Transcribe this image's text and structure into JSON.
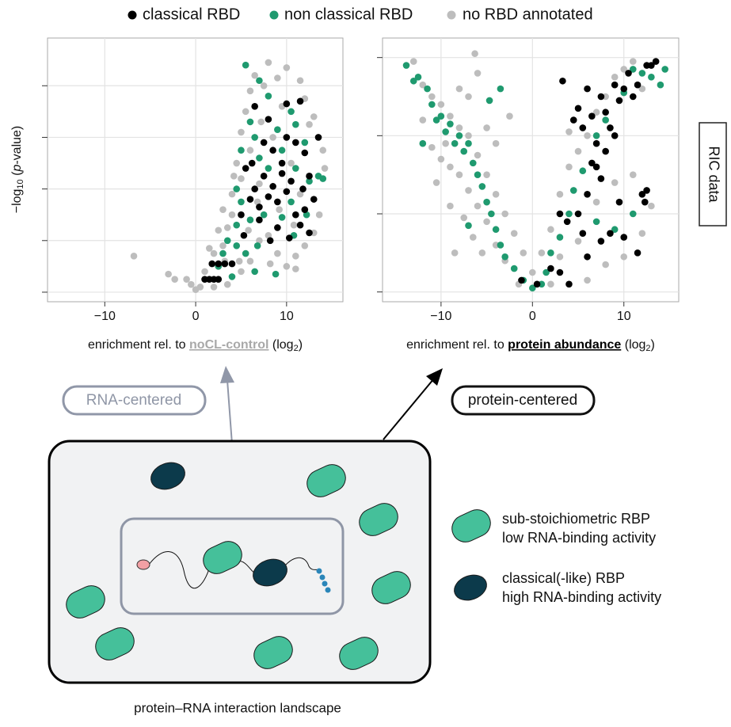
{
  "chart_data": [
    {
      "type": "scatter",
      "ylabel": {
        "pre": "−log",
        "sub": "10",
        "mid": " (",
        "italic": "p",
        "post": "-value)"
      },
      "xlabel": {
        "pre": "enrichment rel. to ",
        "highlight": "noCL-control",
        "mid": " (log",
        "sub": "2",
        "post": ")"
      },
      "highlight_color": "#a9a9a9",
      "xlim": [
        -16.3,
        16.2
      ],
      "ylim": [
        -0.37,
        9.85
      ],
      "xticks": [
        {
          "value": -10,
          "label": "−10"
        },
        0,
        10
      ],
      "yticks": [
        0,
        2,
        4,
        6,
        8
      ],
      "grid": true,
      "series": [
        {
          "name": "classical RBD",
          "color": "#000000",
          "x": [
            1.0,
            1.5,
            2.0,
            2.5,
            1.8,
            2.5,
            3.2,
            4.0,
            5.3,
            5.0,
            6.0,
            6.5,
            7.0,
            7.5,
            8.0,
            8.5,
            9.0,
            9.5,
            10.0,
            10.5,
            11.0,
            11.5,
            12.0,
            12.5,
            13.0,
            10.3,
            9.0,
            7.0,
            6.2,
            8.5,
            10.0,
            11.0,
            12.0,
            13.5,
            10.0,
            11.5,
            6.5,
            8.0,
            9.5,
            7.5,
            5.5,
            12.5,
            8.2,
            11.8
          ],
          "y": [
            0.5,
            0.5,
            0.5,
            0.5,
            1.1,
            1.1,
            1.1,
            1.1,
            2.2,
            3.0,
            3.6,
            4.0,
            3.3,
            4.5,
            3.7,
            4.1,
            3.5,
            4.6,
            3.9,
            4.3,
            3.0,
            2.6,
            3.2,
            2.3,
            3.6,
            2.1,
            2.5,
            2.8,
            5.0,
            5.5,
            6.0,
            5.8,
            5.4,
            6.0,
            7.3,
            7.4,
            7.2,
            6.7,
            5.0,
            5.8,
            4.8,
            4.5,
            2.0,
            4.0
          ]
        },
        {
          "name": "non classical RBD",
          "color": "#1f9a6f",
          "x": [
            5.5,
            7,
            8,
            6,
            10.5,
            5,
            6.5,
            9,
            11,
            12,
            13.5,
            14,
            4.5,
            5,
            6,
            7.5,
            9.5,
            10.5,
            12.5,
            3,
            4.5,
            5.5,
            2.5,
            4,
            6.5,
            8.8,
            10.8,
            12.2,
            8,
            7,
            9.5,
            11,
            4.5,
            3.5,
            6.8
          ],
          "y": [
            8.8,
            8.2,
            7.6,
            6.6,
            7.0,
            5.5,
            6.0,
            6.3,
            6.5,
            5.8,
            4.5,
            4.4,
            4.0,
            3.5,
            2.8,
            3.0,
            2.9,
            3.5,
            4.3,
            1.5,
            1.8,
            1.5,
            1.0,
            0.6,
            0.8,
            0.7,
            2.2,
            3.0,
            4.8,
            5.2,
            5.5,
            4.8,
            2.6,
            2.0,
            1.8
          ]
        },
        {
          "name": "no RBD annotated",
          "color": "#bdbdbd",
          "x": [
            -6.8,
            -3,
            -2.3,
            -1,
            0,
            -0.5,
            0.5,
            1,
            2,
            3,
            3.5,
            4,
            4,
            5,
            4.5,
            5,
            5.5,
            6,
            6.5,
            7.5,
            8,
            9,
            10,
            11.5,
            12,
            13,
            14,
            14.2,
            13.6,
            12,
            11,
            10,
            9,
            8,
            7,
            6,
            5,
            3.5,
            2,
            6,
            7,
            8.5,
            9.5,
            10.5,
            12.5,
            3,
            2.5,
            1.5,
            4.2,
            7.2,
            9.2,
            10.8,
            11.5,
            6.8,
            5.8,
            4.8,
            3.2,
            8.2,
            11,
            13
          ],
          "y": [
            1.4,
            0.7,
            0.5,
            0.5,
            0.1,
            0.3,
            0.2,
            0.8,
            1.5,
            1.8,
            2.5,
            3.0,
            3.8,
            4.4,
            5.0,
            6.2,
            7.0,
            7.8,
            8.4,
            8.0,
            8.9,
            8.3,
            8.7,
            8.2,
            7.5,
            6.8,
            5.5,
            4.8,
            3.0,
            1.8,
            1.4,
            1.0,
            1.5,
            2.2,
            2.0,
            1.2,
            0.8,
            0.3,
            0.2,
            5.5,
            4.2,
            6.0,
            7.2,
            5.0,
            6.5,
            3.2,
            2.4,
            1.7,
            4.5,
            6.6,
            3.2,
            2.6,
            3.8,
            3.5,
            2.4,
            1.2,
            1.2,
            1.1,
            0.9,
            2.3
          ]
        }
      ]
    },
    {
      "type": "scatter",
      "xlabel": {
        "pre": "enrichment rel. to ",
        "highlight": "protein abundance",
        "mid": " (log",
        "sub": "2",
        "post": ")"
      },
      "highlight_color": "#000000",
      "xlim": [
        -16.4,
        16.0
      ],
      "ylim": [
        -0.25,
        6.5
      ],
      "xticks": [
        {
          "value": -10,
          "label": "−10"
        },
        0,
        10
      ],
      "yticks": [
        0,
        2,
        4,
        6
      ],
      "grid": true,
      "series": [
        {
          "color": "#000000",
          "x": [
            3.3,
            4.5,
            5,
            5.5,
            6,
            6.5,
            7,
            7.5,
            8,
            8.5,
            9,
            9.5,
            10,
            10.5,
            11,
            11.5,
            12.5,
            13,
            13.5,
            7,
            7.5,
            6,
            5,
            3,
            3.8,
            5.5,
            7.5,
            8.5,
            10,
            11.5,
            12,
            12.5,
            12.3,
            2,
            3,
            0.5,
            -1.2,
            4,
            6,
            9.5,
            8,
            6.5,
            9
          ],
          "y": [
            5.4,
            4.4,
            4.7,
            4.2,
            5.2,
            4.5,
            3.8,
            5.0,
            4.6,
            4.2,
            5.3,
            4.9,
            5.2,
            5.6,
            5.0,
            5.3,
            5.8,
            5.8,
            5.9,
            3.2,
            2.9,
            2.5,
            2.0,
            2.0,
            1.8,
            1.5,
            1.3,
            1.5,
            1.4,
            1.0,
            2.5,
            2.6,
            2.3,
            0.6,
            0.5,
            0.2,
            0.3,
            0.2,
            0.9,
            2.3,
            3.6,
            3.3,
            4.0
          ]
        },
        {
          "color": "#1f9a6f",
          "x": [
            -13.8,
            -13,
            -12.5,
            -11.5,
            -11,
            -10.5,
            -10,
            -9.5,
            -9,
            -8.5,
            -8,
            -7.5,
            -7,
            -6.5,
            -6,
            -5.5,
            -5,
            -4.5,
            -4,
            -3.5,
            -3,
            -2,
            -1,
            0,
            1,
            1.5,
            2,
            3,
            4,
            4.5,
            5.5,
            7,
            8,
            10,
            11,
            12,
            13,
            14,
            14.5,
            7,
            9,
            11,
            -7,
            -4.7,
            -3.5,
            -12
          ],
          "y": [
            5.8,
            5.4,
            5.5,
            5.2,
            4.8,
            4.4,
            4.5,
            4.1,
            4.3,
            3.8,
            4.0,
            3.6,
            3.8,
            3.3,
            3.0,
            2.7,
            2.3,
            2.0,
            1.6,
            1.2,
            0.9,
            0.6,
            0.3,
            0.1,
            0.2,
            0.5,
            1.0,
            1.4,
            2.0,
            2.6,
            3.1,
            4.0,
            4.4,
            5.1,
            5.7,
            5.6,
            5.5,
            5.3,
            5.7,
            1.8,
            1.6,
            2.0,
            1.7,
            4.9,
            5.2,
            3.8
          ]
        },
        {
          "color": "#bdbdbd",
          "x": [
            -13,
            -12,
            -11,
            -10,
            -9,
            -8,
            -7,
            -6,
            -5,
            -4,
            -3,
            -2,
            -1,
            0,
            -11,
            -10,
            -9,
            -8,
            -7,
            -6,
            -5,
            -4,
            -3,
            -12,
            -10.5,
            -9,
            -7.5,
            -6.5,
            -5.5,
            -7,
            -6.3,
            -6,
            -5,
            -4,
            -2.5,
            -8,
            1,
            2,
            3,
            4,
            5,
            6,
            7,
            8,
            9,
            10,
            11,
            12,
            3,
            5,
            7,
            9,
            11,
            13,
            12,
            10,
            8,
            6,
            2,
            -1.5,
            4,
            -8.5,
            -9.5
          ],
          "y": [
            5.9,
            5.3,
            5.0,
            4.8,
            4.5,
            4.2,
            4.0,
            3.5,
            3.0,
            2.5,
            2.0,
            1.5,
            1.0,
            0.5,
            3.7,
            3.4,
            3.2,
            3.0,
            2.6,
            2.2,
            1.8,
            1.2,
            0.8,
            4.4,
            2.8,
            2.2,
            1.9,
            1.4,
            1.0,
            5.0,
            6.1,
            5.6,
            4.2,
            3.8,
            4.5,
            5.2,
            1.0,
            1.6,
            2.5,
            3.2,
            3.6,
            4.0,
            4.6,
            5.0,
            5.5,
            5.7,
            5.9,
            5.2,
            0.9,
            1.3,
            2.3,
            2.8,
            3.0,
            2.2,
            1.5,
            0.9,
            0.7,
            0.3,
            0.2,
            0.2,
            4.1,
            1.0,
            3.8
          ]
        }
      ]
    }
  ],
  "side_label": "RIC data",
  "diagram": {
    "rna_centered": "RNA-centered",
    "protein_centered": "protein-centered",
    "legend": [
      {
        "line1": "sub-stoichiometric RBP",
        "line2": "low RNA-binding activity"
      },
      {
        "line1": "classical(-like) RBP",
        "line2": "high RNA-binding activity"
      }
    ],
    "caption": "protein–RNA interaction landscape"
  }
}
